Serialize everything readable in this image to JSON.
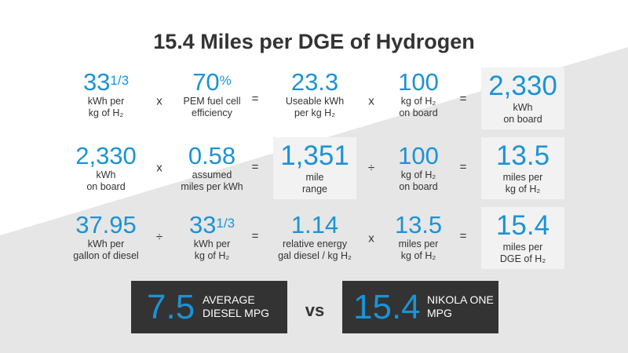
{
  "title": "15.4 Miles per DGE of Hydrogen",
  "colors": {
    "accent": "#1b93d5",
    "text": "#333333",
    "box": "#f2f2f2",
    "footer": "#333333"
  },
  "row1": {
    "a_main": "33",
    "a_sup": "1/3",
    "a_l1": "kWh per",
    "a_l2": "kg of H₂",
    "op1": "x",
    "b_main": "70",
    "b_sup": "%",
    "b_l1": "PEM fuel cell",
    "b_l2": "efficiency",
    "op2": "=",
    "c_main": "23.3",
    "c_l1": "Useable kWh",
    "c_l2": "per kg H₂",
    "op3": "x",
    "d_main": "100",
    "d_l1": "kg of H₂",
    "d_l2": "on board",
    "op4": "=",
    "e_main": "2,330",
    "e_l1": "kWh",
    "e_l2": "on board"
  },
  "row2": {
    "a_main": "2,330",
    "a_l1": "kWh",
    "a_l2": "on board",
    "op1": "x",
    "b_main": "0.58",
    "b_l1": "assumed",
    "b_l2": "miles per kWh",
    "op2": "=",
    "c_main": "1,351",
    "c_l1": "mile",
    "c_l2": "range",
    "op3": "÷",
    "d_main": "100",
    "d_l1": "kg of H₂",
    "d_l2": "on board",
    "op4": "=",
    "e_main": "13.5",
    "e_l1": "miles per",
    "e_l2": "kg of H₂"
  },
  "row3": {
    "a_main": "37.95",
    "a_l1": "kWh per",
    "a_l2": "gallon of diesel",
    "op1": "÷",
    "b_main": "33",
    "b_sup": "1/3",
    "b_l1": "kWh per",
    "b_l2": "kg of H₂",
    "op2": "=",
    "c_main": "1.14",
    "c_l1": "relative energy",
    "c_l2": "gal diesel / kg H₂",
    "op3": "x",
    "d_main": "13.5",
    "d_l1": "miles per",
    "d_l2": "kg of H₂",
    "op4": "=",
    "e_main": "15.4",
    "e_l1": "miles per",
    "e_l2": "DGE of H₂"
  },
  "footer": {
    "left_value": "7.5",
    "left_l1": "AVERAGE",
    "left_l2": "DIESEL MPG",
    "vs": "vs",
    "right_value": "15.4",
    "right_l1": "NIKOLA ONE",
    "right_l2": "MPG"
  }
}
